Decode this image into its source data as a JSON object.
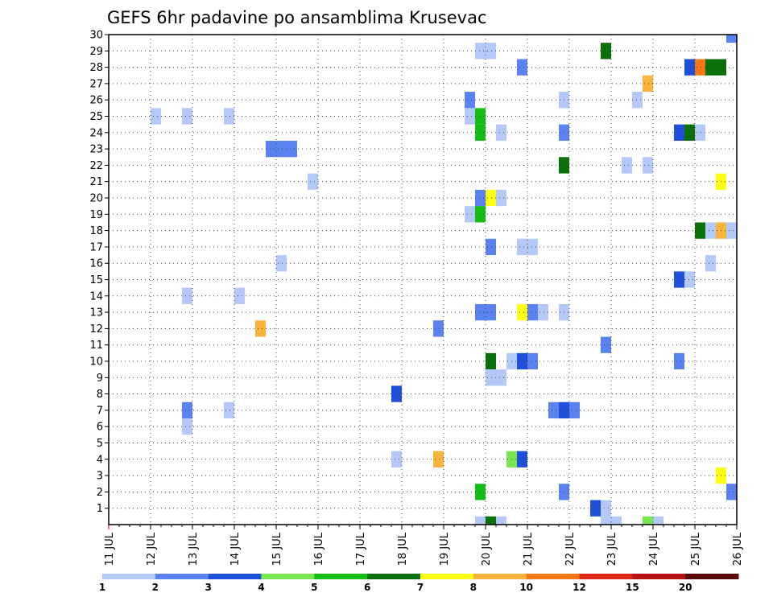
{
  "chart_data": {
    "type": "heatmap",
    "title": "GEFS 6hr padavine po ansamblima Krusevac",
    "xlabel": "",
    "ylabel": "",
    "y_ticks": [
      "1",
      "2",
      "3",
      "4",
      "5",
      "6",
      "7",
      "8",
      "9",
      "10",
      "11",
      "12",
      "13",
      "14",
      "15",
      "16",
      "17",
      "18",
      "19",
      "20",
      "21",
      "22",
      "23",
      "24",
      "25",
      "26",
      "27",
      "28",
      "29",
      "30"
    ],
    "x_ticks": [
      "11 JUL",
      "12 JUL",
      "13 JUL",
      "14 JUL",
      "15 JUL",
      "16 JUL",
      "17 JUL",
      "18 JUL",
      "19 JUL",
      "20 JUL",
      "21 JUL",
      "22 JUL",
      "23 JUL",
      "24 JUL",
      "25 JUL",
      "26 JUL"
    ],
    "xlim": [
      11,
      26
    ],
    "ylim": [
      0,
      30
    ],
    "grid": true,
    "colorbar": {
      "tick_labels": [
        "1",
        "2",
        "3",
        "4",
        "5",
        "6",
        "7",
        "8",
        "10",
        "12",
        "15",
        "20"
      ],
      "colors": [
        "#b4c8fa",
        "#5a82f0",
        "#1e50dc",
        "#78e650",
        "#14be14",
        "#0a700a",
        "#ffff14",
        "#fab43c",
        "#f57814",
        "#dc2814",
        "#b41414",
        "#5a0a0a"
      ]
    },
    "cells": [
      {
        "t": 12.125,
        "m": 25,
        "b": 0
      },
      {
        "t": 12.875,
        "m": 25,
        "b": 0
      },
      {
        "t": 13.875,
        "m": 25,
        "b": 0
      },
      {
        "t": 15.875,
        "m": 21,
        "b": 0
      },
      {
        "t": 14.875,
        "m": 23,
        "b": 1
      },
      {
        "t": 15.125,
        "m": 23,
        "b": 1
      },
      {
        "t": 15.375,
        "m": 23,
        "b": 1
      },
      {
        "t": 15.125,
        "m": 16,
        "b": 0
      },
      {
        "t": 12.875,
        "m": 14,
        "b": 0
      },
      {
        "t": 14.125,
        "m": 14,
        "b": 0
      },
      {
        "t": 14.625,
        "m": 12,
        "b": 7
      },
      {
        "t": 12.875,
        "m": 7,
        "b": 1
      },
      {
        "t": 12.875,
        "m": 6,
        "b": 0
      },
      {
        "t": 13.875,
        "m": 7,
        "b": 0
      },
      {
        "t": 17.875,
        "m": 8,
        "b": 2
      },
      {
        "t": 17.875,
        "m": 4,
        "b": 0
      },
      {
        "t": 18.875,
        "m": 4,
        "b": 7
      },
      {
        "t": 18.875,
        "m": 12,
        "b": 1
      },
      {
        "t": 19.625,
        "m": 26,
        "b": 1
      },
      {
        "t": 19.625,
        "m": 25,
        "b": 0
      },
      {
        "t": 19.875,
        "m": 25,
        "b": 4
      },
      {
        "t": 19.875,
        "m": 24,
        "b": 4
      },
      {
        "t": 20.375,
        "m": 24,
        "b": 0
      },
      {
        "t": 19.625,
        "m": 19,
        "b": 0
      },
      {
        "t": 19.875,
        "m": 19,
        "b": 4
      },
      {
        "t": 19.875,
        "m": 20,
        "b": 1
      },
      {
        "t": 20.125,
        "m": 20,
        "b": 6
      },
      {
        "t": 20.375,
        "m": 20,
        "b": 0
      },
      {
        "t": 19.875,
        "m": 29,
        "b": 0
      },
      {
        "t": 20.125,
        "m": 29,
        "b": 0
      },
      {
        "t": 20.125,
        "m": 17,
        "b": 1
      },
      {
        "t": 19.875,
        "m": 13,
        "b": 1
      },
      {
        "t": 20.125,
        "m": 13,
        "b": 1
      },
      {
        "t": 20.125,
        "m": 10,
        "b": 5
      },
      {
        "t": 20.125,
        "m": 9,
        "b": 0
      },
      {
        "t": 20.375,
        "m": 9,
        "b": 0
      },
      {
        "t": 19.875,
        "m": 2,
        "b": 4
      },
      {
        "t": 19.875,
        "m": 0,
        "b": 0
      },
      {
        "t": 20.125,
        "m": 0,
        "b": 5
      },
      {
        "t": 20.375,
        "m": 0,
        "b": 0
      },
      {
        "t": 20.625,
        "m": 4,
        "b": 3
      },
      {
        "t": 20.875,
        "m": 4,
        "b": 2
      },
      {
        "t": 20.625,
        "m": 10,
        "b": 0
      },
      {
        "t": 20.875,
        "m": 10,
        "b": 2
      },
      {
        "t": 21.125,
        "m": 10,
        "b": 1
      },
      {
        "t": 20.875,
        "m": 13,
        "b": 6
      },
      {
        "t": 21.125,
        "m": 13,
        "b": 1
      },
      {
        "t": 21.375,
        "m": 13,
        "b": 0
      },
      {
        "t": 20.875,
        "m": 17,
        "b": 0
      },
      {
        "t": 21.125,
        "m": 17,
        "b": 0
      },
      {
        "t": 20.875,
        "m": 28,
        "b": 1
      },
      {
        "t": 21.875,
        "m": 26,
        "b": 0
      },
      {
        "t": 21.875,
        "m": 24,
        "b": 1
      },
      {
        "t": 21.875,
        "m": 22,
        "b": 5
      },
      {
        "t": 21.875,
        "m": 13,
        "b": 0
      },
      {
        "t": 21.625,
        "m": 7,
        "b": 1
      },
      {
        "t": 21.875,
        "m": 7,
        "b": 2
      },
      {
        "t": 22.125,
        "m": 7,
        "b": 1
      },
      {
        "t": 21.875,
        "m": 2,
        "b": 1
      },
      {
        "t": 22.875,
        "m": 29,
        "b": 5
      },
      {
        "t": 22.875,
        "m": 11,
        "b": 1
      },
      {
        "t": 22.625,
        "m": 1,
        "b": 2
      },
      {
        "t": 22.875,
        "m": 1,
        "b": 0
      },
      {
        "t": 22.875,
        "m": 0,
        "b": 0
      },
      {
        "t": 23.125,
        "m": 0,
        "b": 0
      },
      {
        "t": 23.375,
        "m": 22,
        "b": 0
      },
      {
        "t": 23.875,
        "m": 22,
        "b": 0
      },
      {
        "t": 23.625,
        "m": 26,
        "b": 0
      },
      {
        "t": 23.875,
        "m": 27,
        "b": 7
      },
      {
        "t": 23.875,
        "m": 0,
        "b": 3
      },
      {
        "t": 24.125,
        "m": 0,
        "b": 0
      },
      {
        "t": 24.625,
        "m": 24,
        "b": 2
      },
      {
        "t": 24.875,
        "m": 24,
        "b": 5
      },
      {
        "t": 25.125,
        "m": 24,
        "b": 0
      },
      {
        "t": 24.875,
        "m": 28,
        "b": 2
      },
      {
        "t": 25.125,
        "m": 28,
        "b": 8
      },
      {
        "t": 25.375,
        "m": 28,
        "b": 5
      },
      {
        "t": 25.625,
        "m": 28,
        "b": 5
      },
      {
        "t": 24.625,
        "m": 15,
        "b": 2
      },
      {
        "t": 24.875,
        "m": 15,
        "b": 0
      },
      {
        "t": 24.625,
        "m": 10,
        "b": 1
      },
      {
        "t": 25.125,
        "m": 18,
        "b": 5
      },
      {
        "t": 25.375,
        "m": 18,
        "b": 0
      },
      {
        "t": 25.625,
        "m": 18,
        "b": 7
      },
      {
        "t": 25.875,
        "m": 18,
        "b": 0
      },
      {
        "t": 25.375,
        "m": 16,
        "b": 0
      },
      {
        "t": 25.625,
        "m": 21,
        "b": 6
      },
      {
        "t": 25.625,
        "m": 3,
        "b": 6
      },
      {
        "t": 25.875,
        "m": 2,
        "b": 1
      },
      {
        "t": 25.875,
        "m": 30,
        "b": 1
      }
    ]
  }
}
